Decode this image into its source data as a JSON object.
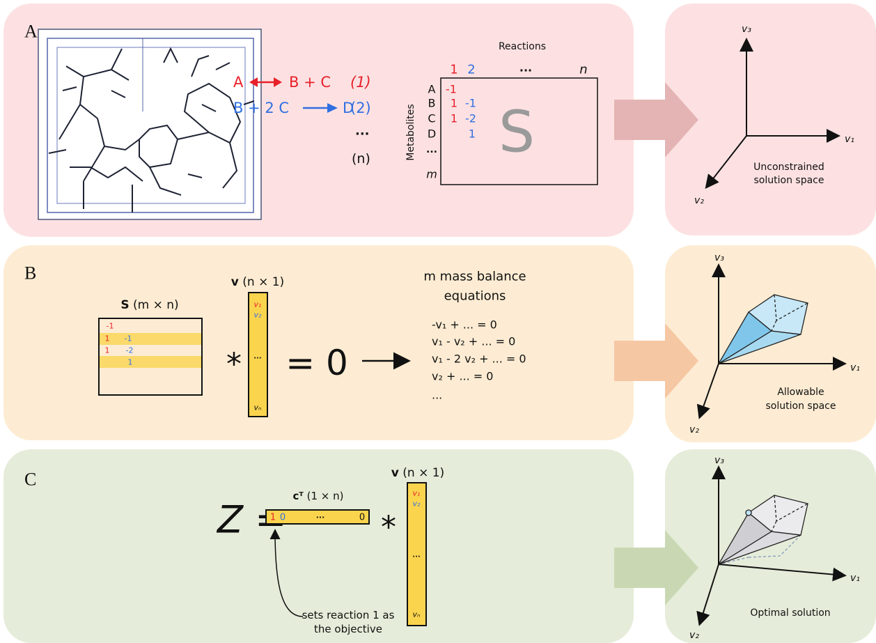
{
  "panel_a": {
    "label": "A",
    "reactions": [
      {
        "left": "A",
        "right": "B + C",
        "number": "(1)"
      },
      {
        "left": "B + 2 C",
        "right": "D",
        "number": "(2)"
      }
    ],
    "more_reactions": "...",
    "last_reaction": "(n)",
    "matrix": {
      "title": "Reactions",
      "columns": [
        "1",
        "2",
        "...",
        "n"
      ],
      "rows_title": "Metabolites",
      "rows": [
        "A",
        "B",
        "C",
        "D",
        "...",
        "m"
      ],
      "column_1": [
        "-1",
        "1",
        "1"
      ],
      "column_2": [
        "-1",
        "-2",
        "1"
      ],
      "symbol": "S"
    },
    "space": {
      "axes": [
        "v₃",
        "v₁",
        "v₂"
      ],
      "caption": [
        "Unconstrained",
        "solution space"
      ]
    }
  },
  "panel_b": {
    "label": "B",
    "matrix": {
      "symbol": "S",
      "dims": "(m × n)",
      "column_1": [
        "-1",
        "1",
        "1"
      ],
      "column_2": [
        "-1",
        "-2",
        "1"
      ]
    },
    "times": "*",
    "vector": {
      "symbol": "v",
      "dims": "(n × 1)",
      "entries": [
        "v₁",
        "v₂",
        "...",
        "vₙ"
      ]
    },
    "equals": "= 0",
    "equations_title": [
      "m mass balance",
      "equations"
    ],
    "equations": [
      "-v₁ + ... = 0",
      "v₁ - v₂ + ... = 0",
      "v₁ - 2 v₂ + ... = 0",
      "v₂ + ... = 0",
      "..."
    ],
    "space": {
      "axes": [
        "v₃",
        "v₁",
        "v₂"
      ],
      "caption": [
        "Allowable",
        "solution space"
      ]
    }
  },
  "panel_c": {
    "label": "C",
    "objective": "Z =",
    "row": {
      "symbol": "cᵀ",
      "dims": "(1 × n)",
      "entries": [
        "1",
        "0",
        "...",
        "0"
      ]
    },
    "times": "*",
    "vector": {
      "symbol": "v",
      "dims": "(n × 1)",
      "entries": [
        "v₁",
        "v₂",
        "...",
        "vₙ"
      ]
    },
    "note": [
      "sets reaction 1 as",
      "the objective"
    ],
    "space": {
      "axes": [
        "v₃",
        "v₁",
        "v₂"
      ],
      "caption": [
        "Optimal solution"
      ]
    }
  }
}
